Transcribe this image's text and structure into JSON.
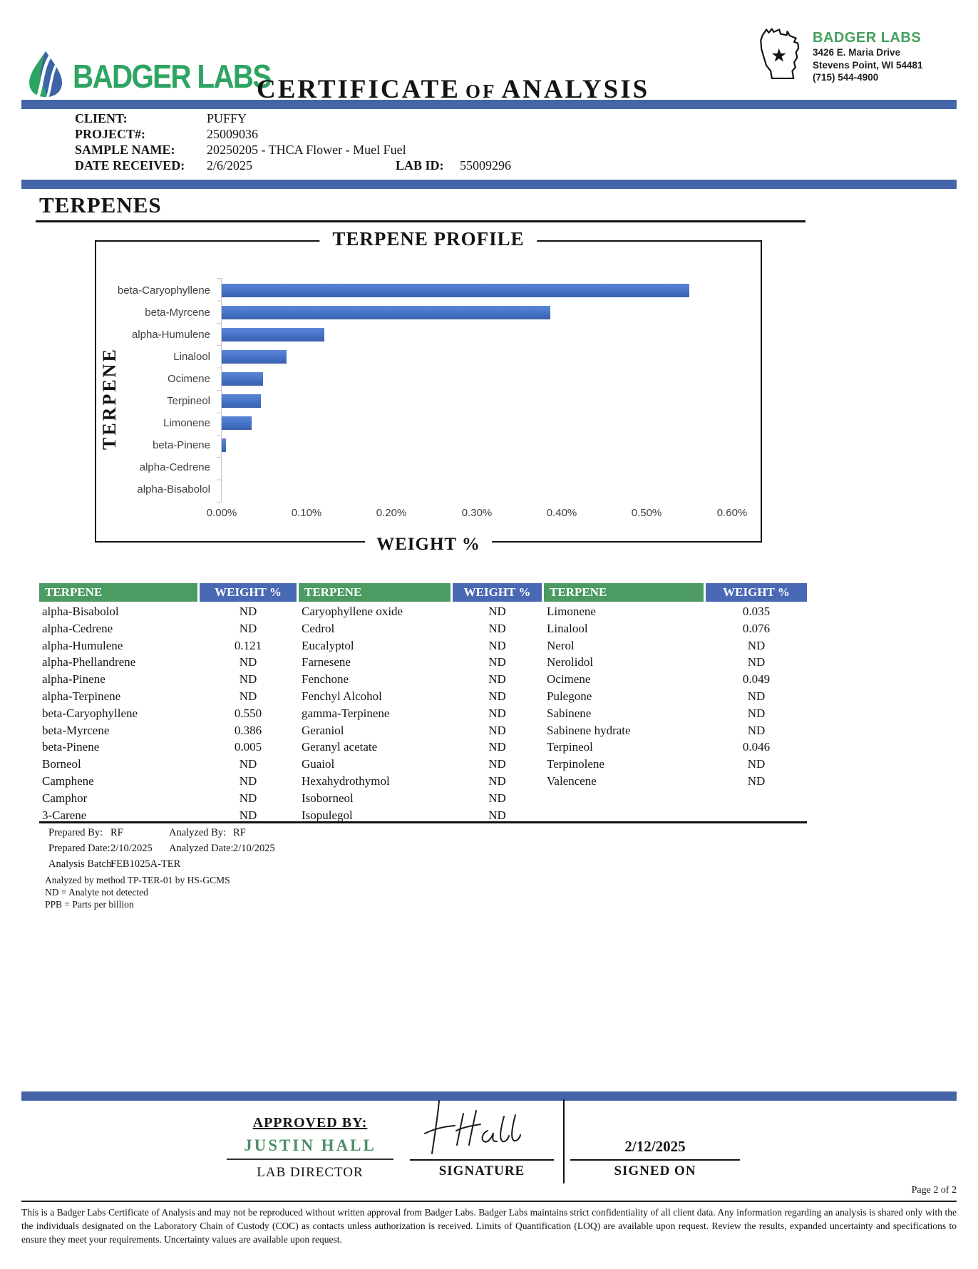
{
  "logo": {
    "name": "BADGER LABS"
  },
  "title": {
    "word1": "CERTIFICATE",
    "word2": "OF",
    "word3": "ANALYSIS"
  },
  "lab": {
    "name": "BADGER LABS",
    "address1": "3426 E. Maria Drive",
    "address2": "Stevens Point, WI 54481",
    "phone": "(715) 544-4900"
  },
  "sample": {
    "client_label": "CLIENT:",
    "client": "PUFFY",
    "project_label": "PROJECT#:",
    "project": "25009036",
    "sample_label": "SAMPLE NAME:",
    "sample": "20250205 - THCA Flower - Muel Fuel",
    "received_label": "DATE RECEIVED:",
    "received": "2/6/2025",
    "lab_id_label": "LAB ID:",
    "lab_id": "55009296"
  },
  "section": {
    "title": "TERPENES"
  },
  "chart_data": {
    "type": "bar",
    "orientation": "horizontal",
    "title": "TERPENE PROFILE",
    "xlabel": "WEIGHT %",
    "ylabel": "TERPENE",
    "categories": [
      "beta-Caryophyllene",
      "beta-Myrcene",
      "alpha-Humulene",
      "Linalool",
      "Ocimene",
      "Terpineol",
      "Limonene",
      "beta-Pinene",
      "alpha-Cedrene",
      "alpha-Bisabolol"
    ],
    "values": [
      0.55,
      0.386,
      0.121,
      0.076,
      0.049,
      0.046,
      0.035,
      0.005,
      0,
      0
    ],
    "unit": "percent weight",
    "xlim": [
      0,
      0.6
    ],
    "x_ticks": [
      "0.00%",
      "0.10%",
      "0.20%",
      "0.30%",
      "0.40%",
      "0.50%",
      "0.60%"
    ],
    "bar_color": "#4472C4",
    "grid": false,
    "legend": false
  },
  "table": {
    "headers": {
      "terpene": "TERPENE",
      "weight": "WEIGHT %"
    },
    "groups": [
      {
        "rows": [
          {
            "name": "alpha-Bisabolol",
            "value": "ND"
          },
          {
            "name": "alpha-Cedrene",
            "value": "ND"
          },
          {
            "name": "alpha-Humulene",
            "value": "0.121"
          },
          {
            "name": "alpha-Phellandrene",
            "value": "ND"
          },
          {
            "name": "alpha-Pinene",
            "value": "ND"
          },
          {
            "name": "alpha-Terpinene",
            "value": "ND"
          },
          {
            "name": "beta-Caryophyllene",
            "value": "0.550"
          },
          {
            "name": "beta-Myrcene",
            "value": "0.386"
          },
          {
            "name": "beta-Pinene",
            "value": "0.005"
          },
          {
            "name": "Borneol",
            "value": "ND"
          },
          {
            "name": "Camphene",
            "value": "ND"
          },
          {
            "name": "Camphor",
            "value": "ND"
          },
          {
            "name": "3-Carene",
            "value": "ND"
          }
        ]
      },
      {
        "rows": [
          {
            "name": "Caryophyllene oxide",
            "value": "ND"
          },
          {
            "name": "Cedrol",
            "value": "ND"
          },
          {
            "name": "Eucalyptol",
            "value": "ND"
          },
          {
            "name": "Farnesene",
            "value": "ND"
          },
          {
            "name": "Fenchone",
            "value": "ND"
          },
          {
            "name": "Fenchyl Alcohol",
            "value": "ND"
          },
          {
            "name": "gamma-Terpinene",
            "value": "ND"
          },
          {
            "name": "Geraniol",
            "value": "ND"
          },
          {
            "name": "Geranyl acetate",
            "value": "ND"
          },
          {
            "name": "Guaiol",
            "value": "ND"
          },
          {
            "name": "Hexahydrothymol",
            "value": "ND"
          },
          {
            "name": "Isoborneol",
            "value": "ND"
          },
          {
            "name": "Isopulegol",
            "value": "ND"
          }
        ]
      },
      {
        "rows": [
          {
            "name": "Limonene",
            "value": "0.035"
          },
          {
            "name": "Linalool",
            "value": "0.076"
          },
          {
            "name": "Nerol",
            "value": "ND"
          },
          {
            "name": "Nerolidol",
            "value": "ND"
          },
          {
            "name": "Ocimene",
            "value": "0.049"
          },
          {
            "name": "Pulegone",
            "value": "ND"
          },
          {
            "name": "Sabinene",
            "value": "ND"
          },
          {
            "name": "Sabinene hydrate",
            "value": "ND"
          },
          {
            "name": "Terpineol",
            "value": "0.046"
          },
          {
            "name": "Terpinolene",
            "value": "ND"
          },
          {
            "name": "Valencene",
            "value": "ND"
          },
          {
            "name": "",
            "value": ""
          },
          {
            "name": "",
            "value": ""
          }
        ]
      }
    ]
  },
  "notes": {
    "prepared_by_label": "Prepared By:",
    "prepared_by": "RF",
    "analyzed_by_label": "Analyzed By:",
    "analyzed_by": "RF",
    "prepared_date_label": "Prepared Date:",
    "prepared_date": "2/10/2025",
    "analyzed_date_label": "Analyzed Date:",
    "analyzed_date": "2/10/2025",
    "batch_label": "Analysis Batch:",
    "batch": "FEB1025A-TER",
    "method": "Analyzed by method TP-TER-01 by HS-GCMS",
    "nd_note": "ND = Analyte not detected",
    "ppb_note": "PPB = Parts per billion"
  },
  "approval": {
    "approved_by_label": "APPROVED BY:",
    "approver": "JUSTIN HALL",
    "approver_title": "LAB DIRECTOR",
    "signature_label": "SIGNATURE",
    "signed_on_label": "SIGNED ON",
    "signed_date": "2/12/2025"
  },
  "footer": {
    "page": "Page 2 of 2",
    "disclaimer": "This is a Badger Labs Certificate of Analysis and may not be reproduced without written approval from Badger Labs. Badger Labs maintains strict confidentiality of all client data. Any information regarding an analysis is shared only with the the individuals designated on the Laboratory Chain of Custody (COC) as contacts unless authorization is received. Limits of Quantification (LOQ) are available upon request. Review the results, expanded uncertainty and specifications to ensure they meet your requirements. Uncertainty values are available upon request."
  },
  "colors": {
    "divider_blue": "#4565A8",
    "bar_blue": "#4472C4",
    "table_header_green": "#4B9B62",
    "table_header_blue": "#4A69B5",
    "brand_green": "#2EA463",
    "approver_green": "#4E8F68"
  }
}
